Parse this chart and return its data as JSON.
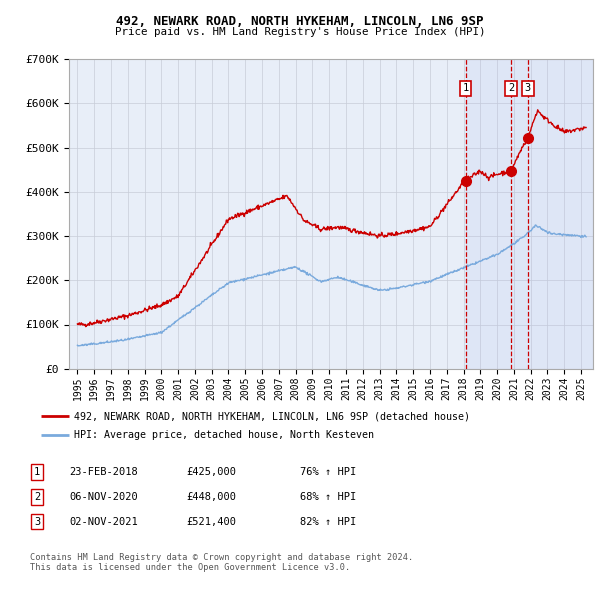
{
  "title1": "492, NEWARK ROAD, NORTH HYKEHAM, LINCOLN, LN6 9SP",
  "title2": "Price paid vs. HM Land Registry's House Price Index (HPI)",
  "legend_line1": "492, NEWARK ROAD, NORTH HYKEHAM, LINCOLN, LN6 9SP (detached house)",
  "legend_line2": "HPI: Average price, detached house, North Kesteven",
  "footer1": "Contains HM Land Registry data © Crown copyright and database right 2024.",
  "footer2": "This data is licensed under the Open Government Licence v3.0.",
  "transactions": [
    {
      "label": "1",
      "date": "23-FEB-2018",
      "price": "£425,000",
      "hpi": "76% ↑ HPI",
      "year": 2018.12
    },
    {
      "label": "2",
      "date": "06-NOV-2020",
      "price": "£448,000",
      "hpi": "68% ↑ HPI",
      "year": 2020.84
    },
    {
      "label": "3",
      "date": "02-NOV-2021",
      "price": "£521,400",
      "hpi": "82% ↑ HPI",
      "year": 2021.83
    }
  ],
  "transaction_values": [
    425000,
    448000,
    521400
  ],
  "red_color": "#cc0000",
  "blue_color": "#7aaadd",
  "bg_color": "#e8eef8",
  "grid_color": "#c8ccd8",
  "vline_color": "#cc0000",
  "ylim": [
    0,
    700000
  ],
  "yticks": [
    0,
    100000,
    200000,
    300000,
    400000,
    500000,
    600000,
    700000
  ],
  "ytick_labels": [
    "£0",
    "£100K",
    "£200K",
    "£300K",
    "£400K",
    "£500K",
    "£600K",
    "£700K"
  ],
  "xlim_start": 1994.5,
  "xlim_end": 2025.7
}
